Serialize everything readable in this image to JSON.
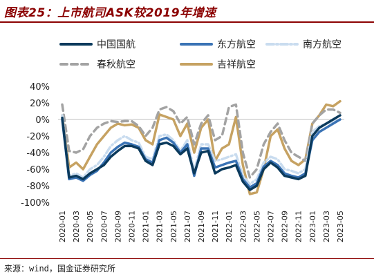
{
  "figure": {
    "title": "图表25：上市航司ASK较2019年增速",
    "source": "来源：wind，国金证券研究所"
  },
  "chart_data": {
    "type": "line",
    "title": "",
    "xlabel": "",
    "ylabel": "",
    "ylim": [
      -1.0,
      0.4
    ],
    "y_ticks": [
      "40%",
      "20%",
      "0%",
      "-20%",
      "-40%",
      "-60%",
      "-80%",
      "-100%"
    ],
    "y_tick_values": [
      0.4,
      0.2,
      0.0,
      -0.2,
      -0.4,
      -0.6,
      -0.8,
      -1.0
    ],
    "x": [
      "2020-01",
      "2020-02",
      "2020-03",
      "2020-04",
      "2020-05",
      "2020-06",
      "2020-07",
      "2020-08",
      "2020-09",
      "2020-10",
      "2020-11",
      "2020-12",
      "2021-01",
      "2021-02",
      "2021-03",
      "2021-04",
      "2021-05",
      "2021-06",
      "2021-07",
      "2021-08",
      "2021-09",
      "2021-10",
      "2021-11",
      "2021-12",
      "2022-01",
      "2022-02",
      "2022-03",
      "2022-04",
      "2022-05",
      "2022-06",
      "2022-07",
      "2022-08",
      "2022-09",
      "2022-10",
      "2022-11",
      "2022-12",
      "2023-01",
      "2023-02",
      "2023-03",
      "2023-04",
      "2023-05"
    ],
    "x_tick_labels": [
      "2020-01",
      "2020-03",
      "2020-05",
      "2020-07",
      "2020-09",
      "2020-11",
      "2021-01",
      "2021-03",
      "2021-05",
      "2021-07",
      "2021-09",
      "2021-11",
      "2022-01",
      "2022-03",
      "2022-05",
      "2022-07",
      "2022-09",
      "2022-11",
      "2023-01",
      "2023-03",
      "2023-05"
    ],
    "grid": false,
    "legend_position": "top",
    "series": [
      {
        "name": "中国国航",
        "color": "#0b3a5c",
        "dash": "solid",
        "values": [
          0.02,
          -0.7,
          -0.68,
          -0.72,
          -0.65,
          -0.6,
          -0.55,
          -0.45,
          -0.38,
          -0.32,
          -0.32,
          -0.35,
          -0.5,
          -0.55,
          -0.3,
          -0.28,
          -0.32,
          -0.42,
          -0.35,
          -0.65,
          -0.4,
          -0.38,
          -0.65,
          -0.6,
          -0.58,
          -0.55,
          -0.75,
          -0.85,
          -0.8,
          -0.6,
          -0.52,
          -0.58,
          -0.68,
          -0.7,
          -0.72,
          -0.68,
          -0.2,
          -0.1,
          -0.05,
          0.0,
          0.05
        ]
      },
      {
        "name": "东方航空",
        "color": "#3a73b5",
        "dash": "solid",
        "values": [
          0.0,
          -0.72,
          -0.7,
          -0.74,
          -0.67,
          -0.62,
          -0.52,
          -0.4,
          -0.33,
          -0.28,
          -0.3,
          -0.33,
          -0.48,
          -0.52,
          -0.25,
          -0.22,
          -0.28,
          -0.4,
          -0.3,
          -0.68,
          -0.35,
          -0.35,
          -0.58,
          -0.55,
          -0.52,
          -0.5,
          -0.72,
          -0.82,
          -0.77,
          -0.57,
          -0.5,
          -0.55,
          -0.65,
          -0.68,
          -0.7,
          -0.65,
          -0.25,
          -0.15,
          -0.1,
          -0.05,
          0.0
        ]
      },
      {
        "name": "南方航空",
        "color": "#c9dcef",
        "dash": "dashdot",
        "values": [
          0.05,
          -0.68,
          -0.65,
          -0.7,
          -0.6,
          -0.55,
          -0.45,
          -0.32,
          -0.25,
          -0.2,
          -0.25,
          -0.28,
          -0.45,
          -0.48,
          -0.2,
          -0.18,
          -0.25,
          -0.38,
          -0.25,
          -0.62,
          -0.3,
          -0.3,
          -0.5,
          -0.48,
          -0.45,
          -0.42,
          -0.68,
          -0.78,
          -0.72,
          -0.52,
          -0.45,
          -0.48,
          -0.6,
          -0.62,
          -0.65,
          -0.6,
          -0.15,
          -0.08,
          -0.05,
          -0.02,
          0.0
        ]
      },
      {
        "name": "春秋航空",
        "color": "#a3a3a3",
        "dash": "dashed",
        "values": [
          0.18,
          -0.38,
          -0.4,
          -0.36,
          -0.2,
          -0.1,
          -0.05,
          -0.02,
          -0.03,
          -0.02,
          -0.02,
          -0.08,
          -0.2,
          -0.1,
          0.12,
          0.15,
          0.1,
          -0.05,
          0.03,
          -0.3,
          -0.05,
          0.05,
          -0.25,
          -0.2,
          0.15,
          0.18,
          -0.4,
          -0.7,
          -0.6,
          -0.3,
          -0.15,
          -0.05,
          -0.25,
          -0.4,
          -0.45,
          -0.5,
          -0.05,
          0.05,
          0.12,
          0.12,
          0.08
        ]
      },
      {
        "name": "吉祥航空",
        "color": "#c6a262",
        "dash": "solid",
        "values": [
          0.05,
          -0.58,
          -0.52,
          -0.6,
          -0.45,
          -0.3,
          -0.2,
          -0.1,
          -0.05,
          -0.07,
          -0.06,
          -0.1,
          -0.25,
          -0.3,
          0.06,
          0.03,
          0.0,
          -0.2,
          -0.05,
          -0.4,
          -0.1,
          0.0,
          -0.5,
          -0.35,
          -0.3,
          0.03,
          -0.55,
          -0.9,
          -0.88,
          -0.6,
          -0.2,
          -0.12,
          -0.35,
          -0.5,
          -0.55,
          -0.48,
          -0.05,
          0.05,
          0.18,
          0.16,
          0.22
        ]
      }
    ]
  }
}
